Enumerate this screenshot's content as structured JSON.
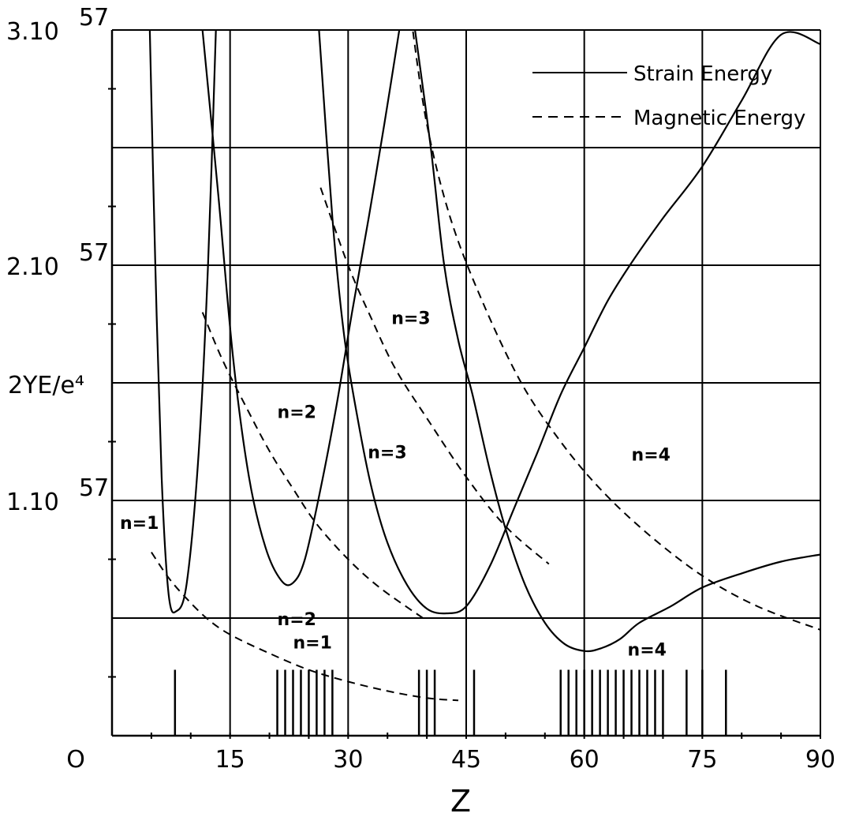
{
  "chart_data": {
    "type": "line",
    "xlabel": "Z",
    "ylabel": "2YE/e⁴",
    "x_ticks": [
      {
        "value": 0,
        "label": "O"
      },
      {
        "value": 15,
        "label": "15"
      },
      {
        "value": 30,
        "label": "30"
      },
      {
        "value": 45,
        "label": "45"
      },
      {
        "value": 60,
        "label": "60"
      },
      {
        "value": 75,
        "label": "75"
      },
      {
        "value": 90,
        "label": "90"
      }
    ],
    "y_ticks": [
      {
        "value": 1,
        "label": "1.10",
        "exp": "57"
      },
      {
        "value": 2,
        "label": "2.10",
        "exp": "57"
      },
      {
        "value": 3,
        "label": "3.10",
        "exp": "57"
      }
    ],
    "xlim": [
      0,
      90
    ],
    "ylim": [
      0,
      3
    ],
    "y_unit": "10^57",
    "grid": true,
    "legend": {
      "placement": "top-right",
      "entries": [
        {
          "label": "Strain Energy",
          "style": "solid"
        },
        {
          "label": "Magnetic Energy",
          "style": "dashed"
        }
      ]
    },
    "series": [
      {
        "name": "Strain Energy",
        "style": "solid",
        "points": [
          [
            4.8,
            3.0
          ],
          [
            5.5,
            2.0
          ],
          [
            6.3,
            1.1
          ],
          [
            7.2,
            0.6
          ],
          [
            8.2,
            0.53
          ],
          [
            9.5,
            0.65
          ],
          [
            11,
            1.2
          ],
          [
            12.2,
            2.0
          ],
          [
            13.2,
            3.0
          ]
        ]
      },
      {
        "name": "Strain Energy",
        "style": "solid",
        "points": [
          [
            11.5,
            3.0
          ],
          [
            13.5,
            2.3
          ],
          [
            15.4,
            1.6
          ],
          [
            17.4,
            1.1
          ],
          [
            19.5,
            0.8
          ],
          [
            21.5,
            0.66
          ],
          [
            23,
            0.65
          ],
          [
            24.5,
            0.75
          ],
          [
            26.5,
            1.05
          ],
          [
            28.5,
            1.4
          ],
          [
            30.5,
            1.8
          ],
          [
            32.6,
            2.2
          ],
          [
            34.6,
            2.6
          ],
          [
            36.5,
            3.0
          ]
        ]
      },
      {
        "name": "Strain Energy",
        "style": "solid",
        "points": [
          [
            26.3,
            3.0
          ],
          [
            28,
            2.2
          ],
          [
            29.5,
            1.7
          ],
          [
            31.2,
            1.35
          ],
          [
            33,
            1.05
          ],
          [
            35,
            0.82
          ],
          [
            37.5,
            0.64
          ],
          [
            40,
            0.54
          ],
          [
            42.5,
            0.52
          ],
          [
            45,
            0.55
          ],
          [
            48,
            0.72
          ],
          [
            51,
            0.96
          ],
          [
            54,
            1.2
          ],
          [
            57,
            1.45
          ],
          [
            60,
            1.65
          ],
          [
            63,
            1.85
          ],
          [
            66,
            2.01
          ],
          [
            70,
            2.2
          ],
          [
            75,
            2.42
          ],
          [
            80,
            2.7
          ],
          [
            85,
            2.98
          ],
          [
            90,
            2.94
          ]
        ]
      },
      {
        "name": "Strain Energy",
        "style": "solid",
        "points": [
          [
            38.5,
            3.0
          ],
          [
            40.5,
            2.5
          ],
          [
            42.2,
            2.0
          ],
          [
            44,
            1.68
          ],
          [
            45.8,
            1.45
          ],
          [
            48,
            1.13
          ],
          [
            50,
            0.88
          ],
          [
            52.5,
            0.64
          ],
          [
            55,
            0.48
          ],
          [
            57.5,
            0.39
          ],
          [
            60,
            0.36
          ],
          [
            62,
            0.37
          ],
          [
            64.5,
            0.41
          ],
          [
            67,
            0.48
          ],
          [
            71,
            0.55
          ],
          [
            75,
            0.63
          ],
          [
            80,
            0.69
          ],
          [
            85,
            0.74
          ],
          [
            90,
            0.77
          ]
        ]
      },
      {
        "name": "Magnetic Energy",
        "style": "dashed",
        "points": [
          [
            5,
            0.78
          ],
          [
            7,
            0.68
          ],
          [
            9,
            0.6
          ],
          [
            12,
            0.5
          ],
          [
            15,
            0.43
          ],
          [
            20,
            0.35
          ],
          [
            25,
            0.28
          ],
          [
            30,
            0.23
          ],
          [
            35,
            0.19
          ],
          [
            40,
            0.16
          ],
          [
            44,
            0.15
          ]
        ]
      },
      {
        "name": "Magnetic Energy",
        "style": "dashed",
        "points": [
          [
            11.5,
            1.8
          ],
          [
            14,
            1.6
          ],
          [
            17,
            1.4
          ],
          [
            20,
            1.21
          ],
          [
            23,
            1.05
          ],
          [
            26,
            0.9
          ],
          [
            30,
            0.75
          ],
          [
            34,
            0.63
          ],
          [
            39.5,
            0.5
          ]
        ]
      },
      {
        "name": "Magnetic Energy",
        "style": "dashed",
        "points": [
          [
            26.5,
            2.33
          ],
          [
            30,
            2.0
          ],
          [
            33,
            1.77
          ],
          [
            36,
            1.56
          ],
          [
            40,
            1.35
          ],
          [
            45,
            1.1
          ],
          [
            50,
            0.89
          ],
          [
            55.5,
            0.73
          ]
        ]
      },
      {
        "name": "Magnetic Energy",
        "style": "dashed",
        "points": [
          [
            38,
            3.05
          ],
          [
            40,
            2.6
          ],
          [
            43,
            2.2
          ],
          [
            47,
            1.85
          ],
          [
            52,
            1.5
          ],
          [
            57,
            1.25
          ],
          [
            62,
            1.05
          ],
          [
            68,
            0.86
          ],
          [
            75,
            0.68
          ],
          [
            82,
            0.55
          ],
          [
            90,
            0.45
          ]
        ]
      }
    ],
    "curve_labels": [
      {
        "text": "n=1",
        "x": 1,
        "y": 0.88
      },
      {
        "text": "n=1",
        "x": 23,
        "y": 0.37
      },
      {
        "text": "n=2",
        "x": 21,
        "y": 1.35
      },
      {
        "text": "n=2",
        "x": 21,
        "y": 0.47
      },
      {
        "text": "n=3",
        "x": 35.5,
        "y": 1.75
      },
      {
        "text": "n=3",
        "x": 32.5,
        "y": 1.18
      },
      {
        "text": "n=4",
        "x": 66,
        "y": 1.17
      },
      {
        "text": "n=4",
        "x": 65.5,
        "y": 0.34
      }
    ],
    "element_ticks": [
      {
        "z": 8,
        "h": 0.28
      },
      {
        "z": 21,
        "h": 0.28
      },
      {
        "z": 22,
        "h": 0.28
      },
      {
        "z": 23,
        "h": 0.28
      },
      {
        "z": 24,
        "h": 0.28
      },
      {
        "z": 25,
        "h": 0.28
      },
      {
        "z": 26,
        "h": 0.28
      },
      {
        "z": 27,
        "h": 0.28
      },
      {
        "z": 28,
        "h": 0.28
      },
      {
        "z": 39,
        "h": 0.28
      },
      {
        "z": 40,
        "h": 0.28
      },
      {
        "z": 41,
        "h": 0.28
      },
      {
        "z": 46,
        "h": 0.28
      },
      {
        "z": 57,
        "h": 0.28
      },
      {
        "z": 58,
        "h": 0.28
      },
      {
        "z": 59,
        "h": 0.28
      },
      {
        "z": 60,
        "h": 0.28
      },
      {
        "z": 61,
        "h": 0.28
      },
      {
        "z": 62,
        "h": 0.28
      },
      {
        "z": 63,
        "h": 0.28
      },
      {
        "z": 64,
        "h": 0.28
      },
      {
        "z": 65,
        "h": 0.28
      },
      {
        "z": 66,
        "h": 0.28
      },
      {
        "z": 67,
        "h": 0.28
      },
      {
        "z": 68,
        "h": 0.28
      },
      {
        "z": 69,
        "h": 0.28
      },
      {
        "z": 70,
        "h": 0.28
      },
      {
        "z": 73,
        "h": 0.28
      },
      {
        "z": 75,
        "h": 0.28
      },
      {
        "z": 78,
        "h": 0.28
      }
    ]
  }
}
